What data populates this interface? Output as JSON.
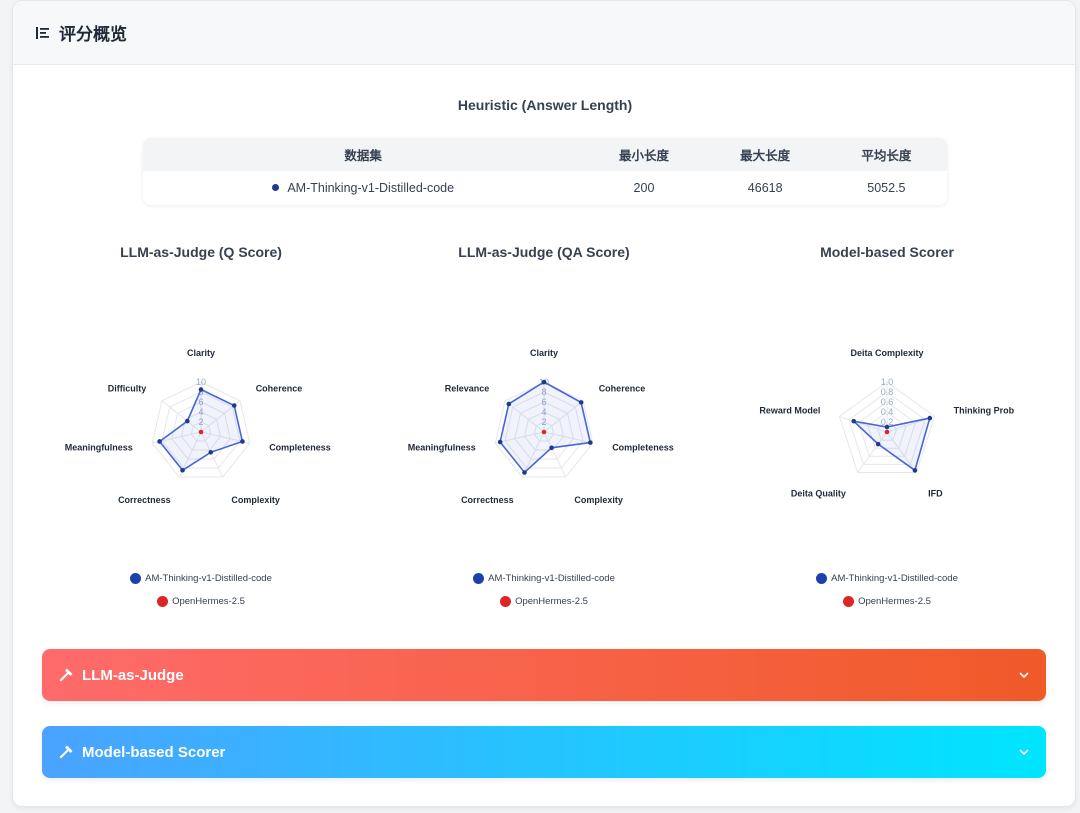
{
  "header": {
    "title": "评分概览",
    "icon": "list-icon"
  },
  "heuristic": {
    "title": "Heuristic (Answer Length)",
    "columns": [
      "数据集",
      "最小长度",
      "最大长度",
      "平均长度"
    ],
    "rows": [
      {
        "dataset": "AM-Thinking-v1-Distilled-code",
        "min": "200",
        "max": "46618",
        "avg": "5052.5",
        "color": "#1e3a8a"
      }
    ]
  },
  "charts": [
    {
      "title": "LLM-as-Judge (Q Score)",
      "ticks": [
        "10",
        "8",
        "6",
        "4",
        "2"
      ],
      "axes": [
        "Clarity",
        "Coherence",
        "Completeness",
        "Complexity",
        "Correctness",
        "Meaningfulness",
        "Difficulty"
      ]
    },
    {
      "title": "LLM-as-Judge (QA Score)",
      "ticks": [
        "10",
        "8",
        "6",
        "4",
        "2"
      ],
      "axes": [
        "Clarity",
        "Coherence",
        "Completeness",
        "Complexity",
        "Correctness",
        "Meaningfulness",
        "Relevance"
      ]
    },
    {
      "title": "Model-based Scorer",
      "ticks": [
        "1.0",
        "0.8",
        "0.6",
        "0.4",
        "0.2"
      ],
      "axes": [
        "Deita Complexity",
        "Thinking Prob",
        "IFD",
        "Deita Quality",
        "Reward Model"
      ]
    }
  ],
  "chart_data": [
    {
      "type": "radar",
      "title": "LLM-as-Judge (Q Score)",
      "axes": [
        "Clarity",
        "Coherence",
        "Completeness",
        "Complexity",
        "Correctness",
        "Meaningfulness",
        "Difficulty"
      ],
      "range": [
        0,
        10
      ],
      "series": [
        {
          "name": "AM-Thinking-v1-Distilled-code",
          "values": [
            8.5,
            8.5,
            8.5,
            4.5,
            8.5,
            8.5,
            3.5
          ]
        },
        {
          "name": "OpenHermes-2.5",
          "values": [
            0,
            0,
            0,
            0,
            0,
            0,
            0
          ]
        }
      ]
    },
    {
      "type": "radar",
      "title": "LLM-as-Judge (QA Score)",
      "axes": [
        "Clarity",
        "Coherence",
        "Completeness",
        "Complexity",
        "Correctness",
        "Meaningfulness",
        "Relevance"
      ],
      "range": [
        0,
        10
      ],
      "series": [
        {
          "name": "AM-Thinking-v1-Distilled-code",
          "values": [
            10,
            9.5,
            9.5,
            3.5,
            9,
            9,
            9
          ]
        },
        {
          "name": "OpenHermes-2.5",
          "values": [
            0,
            0,
            0,
            0,
            0,
            0,
            0
          ]
        }
      ]
    },
    {
      "type": "radar",
      "title": "Model-based Scorer",
      "axes": [
        "Deita Complexity",
        "Thinking Prob",
        "IFD",
        "Deita Quality",
        "Reward Model"
      ],
      "range": [
        0,
        1
      ],
      "series": [
        {
          "name": "AM-Thinking-v1-Distilled-code",
          "values": [
            0.1,
            0.9,
            0.95,
            0.3,
            0.7
          ]
        },
        {
          "name": "OpenHermes-2.5",
          "values": [
            0,
            0,
            0,
            0,
            0
          ]
        }
      ]
    }
  ],
  "legend": [
    {
      "name": "AM-Thinking-v1-Distilled-code",
      "color": "#1e40af"
    },
    {
      "name": "OpenHermes-2.5",
      "color": "#dc2626"
    }
  ],
  "accordions": [
    {
      "label": "LLM-as-Judge",
      "icon": "hammer-icon"
    },
    {
      "label": "Model-based Scorer",
      "icon": "hammer-icon"
    }
  ],
  "colors": {
    "series_line": "#4766d6",
    "series_fill": "#3b5bdb",
    "series_point": "#1e3a8a",
    "zero_point": "#dc2626"
  }
}
